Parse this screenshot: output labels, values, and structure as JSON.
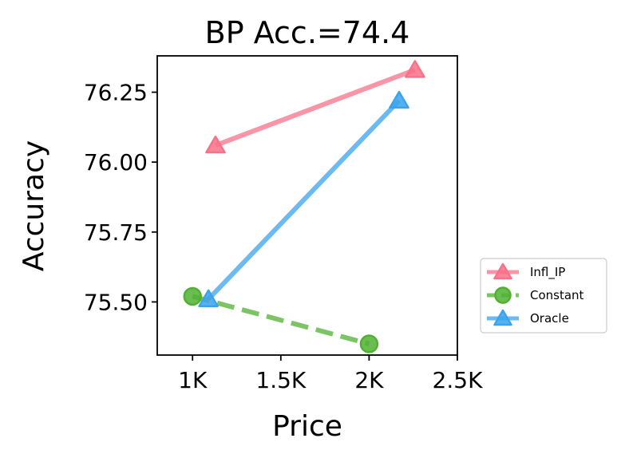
{
  "chart_data": {
    "type": "line",
    "title": "BP Acc.=74.4",
    "xlabel": "Price",
    "ylabel": "Accuracy",
    "xlim": [
      800,
      2500
    ],
    "ylim": [
      75.31,
      76.38
    ],
    "xticks": [
      1000,
      1500,
      2000,
      2500
    ],
    "xtick_labels": [
      "1K",
      "1.5K",
      "2K",
      "2.5K"
    ],
    "yticks": [
      75.5,
      75.75,
      76.0,
      76.25
    ],
    "ytick_labels": [
      "75.50",
      "75.75",
      "76.00",
      "76.25"
    ],
    "grid": false,
    "legend_position": "outside-right-bottom",
    "series": [
      {
        "name": "Infl_IP",
        "color": "#f77189",
        "marker": "triangle",
        "linestyle": "solid",
        "points": [
          [
            1130,
            76.06
          ],
          [
            2260,
            76.33
          ]
        ]
      },
      {
        "name": "Constant",
        "color": "#50b131",
        "marker": "circle",
        "linestyle": "dashed",
        "points": [
          [
            1000,
            75.52
          ],
          [
            2000,
            75.35
          ]
        ]
      },
      {
        "name": "Oracle",
        "color": "#3ba3ec",
        "marker": "triangle",
        "linestyle": "solid",
        "points": [
          [
            1090,
            75.51
          ],
          [
            2170,
            76.22
          ]
        ]
      }
    ]
  }
}
